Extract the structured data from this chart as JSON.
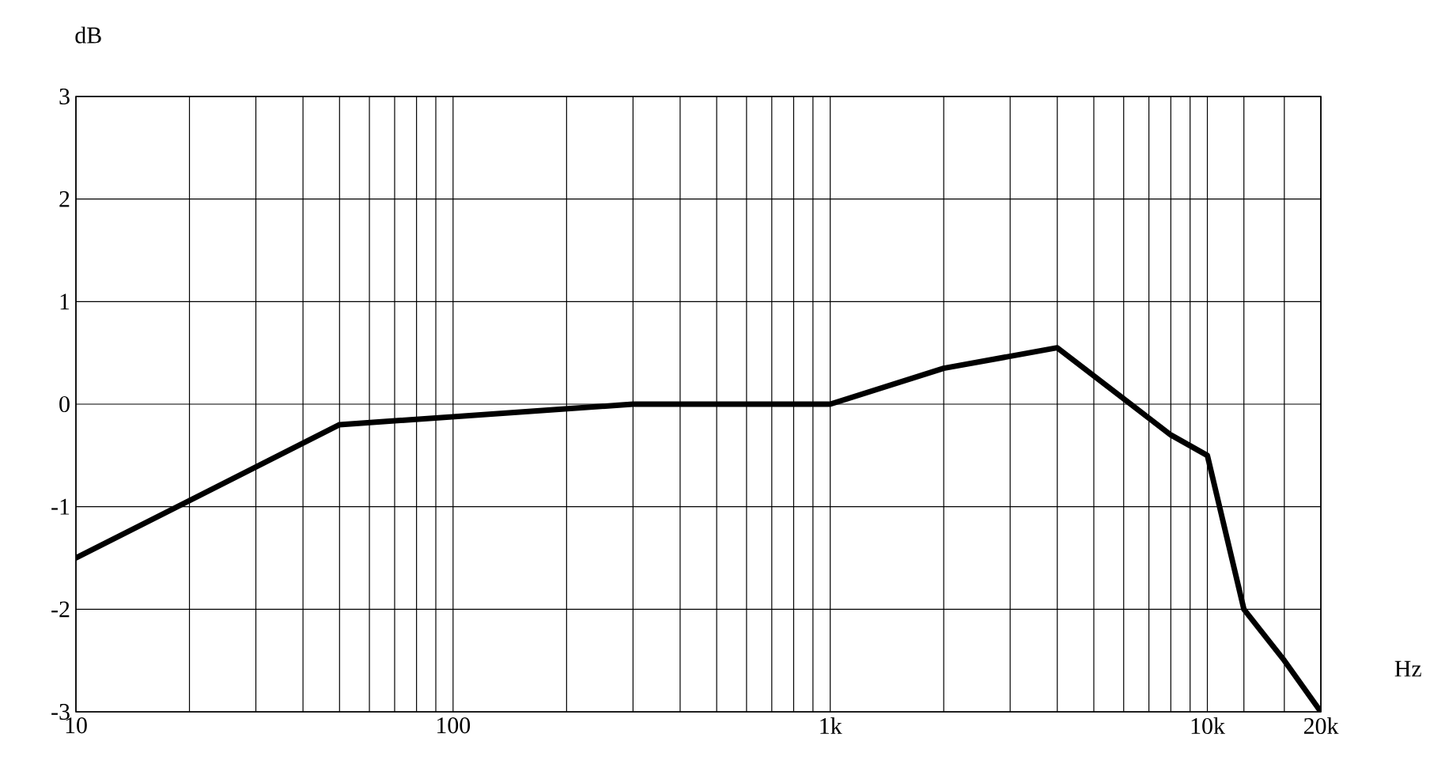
{
  "chart_data": {
    "type": "line",
    "xlabel": "Hz",
    "ylabel": "dB",
    "log": "x",
    "x": [
      10,
      50,
      300,
      1000,
      2000,
      4000,
      8000,
      10000,
      12500,
      16000,
      20000
    ],
    "series": [
      {
        "color": "#000000",
        "values": [
          -1.5,
          -0.2,
          0,
          0,
          0.35,
          0.55,
          -0.3,
          -0.5,
          -2.0,
          -2.5,
          -3.0
        ]
      }
    ],
    "xlim": [
      10,
      20000
    ],
    "ylim": [
      -3,
      3
    ],
    "xticks": [
      10,
      {
        "value": 20,
        "label": null
      },
      {
        "value": 30,
        "label": null
      },
      {
        "value": 40,
        "label": null
      },
      {
        "value": 50,
        "label": null
      },
      {
        "value": 60,
        "label": null
      },
      {
        "value": 70,
        "label": null
      },
      {
        "value": 80,
        "label": null
      },
      {
        "value": 90,
        "label": null
      },
      100,
      {
        "value": 200,
        "label": null
      },
      {
        "value": 300,
        "label": null
      },
      {
        "value": 400,
        "label": null
      },
      {
        "value": 500,
        "label": null
      },
      {
        "value": 600,
        "label": null
      },
      {
        "value": 700,
        "label": null
      },
      {
        "value": 800,
        "label": null
      },
      {
        "value": 900,
        "label": null
      },
      {
        "value": 1000,
        "label": "1k"
      },
      {
        "value": 2000,
        "label": null
      },
      {
        "value": 3000,
        "label": null
      },
      {
        "value": 4000,
        "label": null
      },
      {
        "value": 5000,
        "label": null
      },
      {
        "value": 6000,
        "label": null
      },
      {
        "value": 7000,
        "label": null
      },
      {
        "value": 8000,
        "label": null
      },
      {
        "value": 9000,
        "label": null
      },
      {
        "value": 10000,
        "label": "10k"
      },
      {
        "value": 12500,
        "label": null
      },
      {
        "value": 16000,
        "label": null
      },
      {
        "value": 20000,
        "label": "20k"
      }
    ],
    "yticks": [
      -3,
      -2,
      -1,
      0,
      1,
      2,
      3
    ],
    "grid": true,
    "marker": "none",
    "line_style": "solid"
  }
}
